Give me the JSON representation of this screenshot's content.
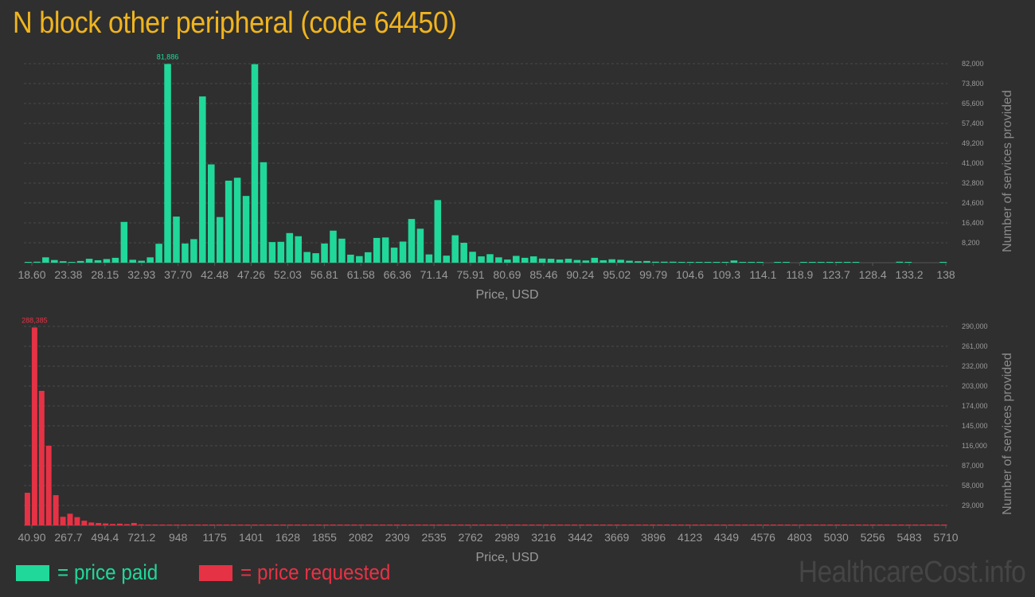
{
  "title": "N block other peripheral (code 64450)",
  "colors": {
    "paid": "#20d89a",
    "requested": "#e63245",
    "title": "#f0b41e"
  },
  "legend": {
    "paid": "= price paid",
    "requested": "= price requested"
  },
  "watermark": "HealthcareCost.info",
  "chart_data": [
    {
      "type": "bar",
      "name": "price-paid",
      "color": "#20d89a",
      "xlabel": "Price, USD",
      "ylabel": "Number of services provided",
      "ylim": [
        0,
        82000
      ],
      "yticks": [
        "8,200",
        "16,400",
        "24,600",
        "32,800",
        "41,000",
        "49,200",
        "57,400",
        "65,600",
        "73,800",
        "82,000"
      ],
      "xticks": [
        "18.60",
        "23.38",
        "28.15",
        "32.93",
        "37.70",
        "42.48",
        "47.26",
        "52.03",
        "56.81",
        "61.58",
        "66.36",
        "71.14",
        "75.91",
        "80.69",
        "85.46",
        "90.24",
        "95.02",
        "99.79",
        "104.6",
        "109.3",
        "114.1",
        "118.9",
        "123.7",
        "128.4",
        "133.2",
        "138"
      ],
      "peak_label": "81,886",
      "values": [
        200,
        400,
        2200,
        1100,
        600,
        300,
        700,
        1600,
        1000,
        1500,
        2000,
        16800,
        1200,
        800,
        2200,
        7800,
        81886,
        19000,
        7900,
        9700,
        68500,
        40500,
        18800,
        33800,
        35000,
        27500,
        81800,
        41400,
        8500,
        8600,
        12200,
        10900,
        4400,
        3900,
        7900,
        13200,
        9900,
        3300,
        2700,
        4300,
        10200,
        10400,
        6200,
        8700,
        18000,
        14000,
        3400,
        25800,
        2900,
        11300,
        8200,
        4500,
        2600,
        3500,
        2200,
        1300,
        2800,
        2000,
        2600,
        1700,
        1600,
        1300,
        1600,
        1100,
        900,
        2000,
        1000,
        1400,
        1200,
        800,
        600,
        700,
        400,
        400,
        400,
        300,
        300,
        300,
        300,
        300,
        300,
        900,
        300,
        300,
        200,
        0,
        200,
        200,
        0,
        200,
        200,
        200,
        200,
        200,
        200,
        200,
        0,
        0,
        0,
        0,
        400,
        200,
        0,
        0,
        0,
        200
      ]
    },
    {
      "type": "bar",
      "name": "price-requested",
      "color": "#e63245",
      "xlabel": "Price, USD",
      "ylabel": "Number of services provided",
      "ylim": [
        0,
        290000
      ],
      "yticks": [
        "29,000",
        "58,000",
        "87,000",
        "116,000",
        "145,000",
        "174,000",
        "203,000",
        "232,000",
        "261,000",
        "290,000"
      ],
      "xticks": [
        "40.90",
        "267.7",
        "494.4",
        "721.2",
        "948",
        "1175",
        "1401",
        "1628",
        "1855",
        "2082",
        "2309",
        "2535",
        "2762",
        "2989",
        "3216",
        "3442",
        "3669",
        "3896",
        "4123",
        "4349",
        "4576",
        "4803",
        "5030",
        "5256",
        "5483",
        "5710"
      ],
      "peak_label": "288,385",
      "values": [
        47500,
        288385,
        196000,
        116000,
        44000,
        12500,
        17000,
        12000,
        6800,
        4200,
        3500,
        2800,
        2000,
        2500,
        1800,
        3500,
        1400,
        900,
        1200,
        800,
        800,
        700,
        800,
        700,
        700,
        600,
        600,
        600,
        500,
        600,
        500,
        400,
        500,
        400,
        400,
        400,
        400,
        400,
        400,
        400,
        1000,
        400,
        400,
        400,
        400,
        400,
        400,
        400,
        400,
        400,
        400,
        400,
        400,
        400,
        400,
        400,
        400,
        400,
        400,
        400,
        400,
        400,
        400,
        400,
        400,
        400,
        400,
        400,
        400,
        400,
        400,
        400,
        400,
        400,
        400,
        400,
        400,
        400,
        400,
        400,
        400,
        400,
        400,
        400,
        400,
        400,
        400,
        400,
        400,
        400,
        400,
        400,
        400,
        400,
        400,
        400,
        400,
        400,
        400,
        400,
        400,
        400,
        400,
        400,
        400,
        400,
        400,
        400,
        400,
        400,
        400,
        400,
        400,
        400,
        400,
        400,
        400,
        400,
        400,
        400,
        400,
        400,
        400,
        400,
        400,
        400,
        400,
        400,
        400,
        400
      ]
    }
  ]
}
